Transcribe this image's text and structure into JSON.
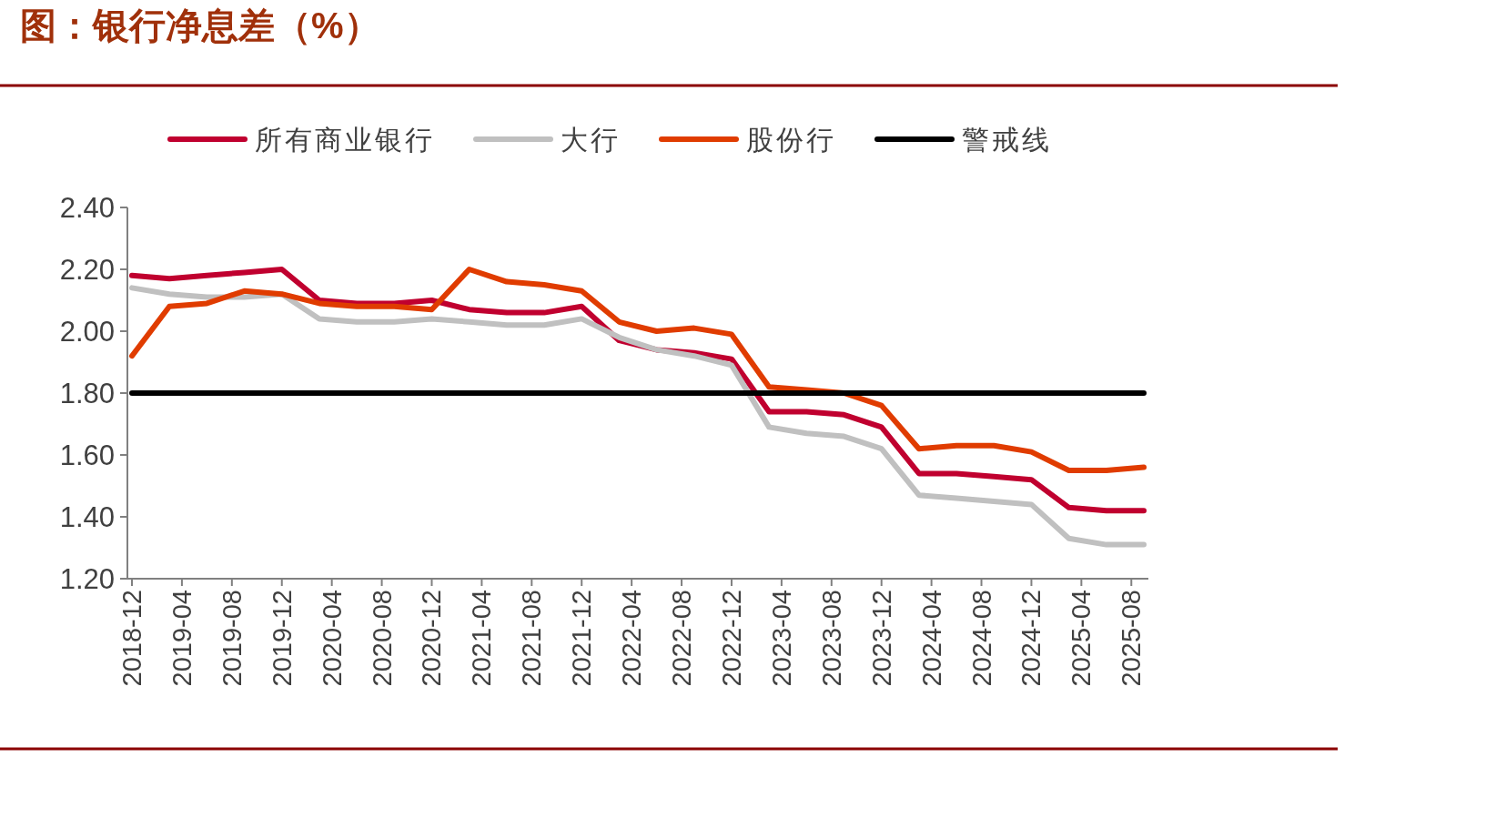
{
  "chart_data": {
    "type": "line",
    "title": "图：银行净息差（%）",
    "x": [
      "2018-12",
      "2019-03",
      "2019-06",
      "2019-09",
      "2019-12",
      "2020-03",
      "2020-06",
      "2020-09",
      "2020-12",
      "2021-03",
      "2021-06",
      "2021-09",
      "2021-12",
      "2022-03",
      "2022-06",
      "2022-09",
      "2022-12",
      "2023-03",
      "2023-06",
      "2023-09",
      "2023-12",
      "2024-03",
      "2024-06",
      "2024-09",
      "2024-12",
      "2025-03",
      "2025-06",
      "2025-09"
    ],
    "series": [
      {
        "name": "所有商业银行",
        "color": "#c0002f",
        "values": [
          2.18,
          2.17,
          2.18,
          2.19,
          2.2,
          2.1,
          2.09,
          2.09,
          2.1,
          2.07,
          2.06,
          2.06,
          2.08,
          1.97,
          1.94,
          1.93,
          1.91,
          1.74,
          1.74,
          1.73,
          1.69,
          1.54,
          1.54,
          1.53,
          1.52,
          1.43,
          1.42,
          1.42
        ]
      },
      {
        "name": "大行",
        "color": "#c0c0c0",
        "values": [
          2.14,
          2.12,
          2.11,
          2.11,
          2.12,
          2.04,
          2.03,
          2.03,
          2.04,
          2.03,
          2.02,
          2.02,
          2.04,
          1.98,
          1.94,
          1.92,
          1.89,
          1.69,
          1.67,
          1.66,
          1.62,
          1.47,
          1.46,
          1.45,
          1.44,
          1.33,
          1.31,
          1.31
        ]
      },
      {
        "name": "股份行",
        "color": "#e03c00",
        "values": [
          1.92,
          2.08,
          2.09,
          2.13,
          2.12,
          2.09,
          2.08,
          2.08,
          2.07,
          2.2,
          2.16,
          2.15,
          2.13,
          2.03,
          2.0,
          2.01,
          1.99,
          1.82,
          1.81,
          1.8,
          1.76,
          1.62,
          1.63,
          1.63,
          1.61,
          1.55,
          1.55,
          1.56
        ]
      },
      {
        "name": "警戒线",
        "color": "#000000",
        "values": [
          1.8,
          1.8,
          1.8,
          1.8,
          1.8,
          1.8,
          1.8,
          1.8,
          1.8,
          1.8,
          1.8,
          1.8,
          1.8,
          1.8,
          1.8,
          1.8,
          1.8,
          1.8,
          1.8,
          1.8,
          1.8,
          1.8,
          1.8,
          1.8,
          1.8,
          1.8,
          1.8,
          1.8
        ]
      }
    ],
    "xlim": [
      "2018-12",
      "2025-09"
    ],
    "xticks": [
      "2018-12",
      "2019-04",
      "2019-08",
      "2019-12",
      "2020-04",
      "2020-08",
      "2020-12",
      "2021-04",
      "2021-08",
      "2021-12",
      "2022-04",
      "2022-08",
      "2022-12",
      "2023-04",
      "2023-08",
      "2023-12",
      "2024-04",
      "2024-08",
      "2024-12",
      "2025-04",
      "2025-08"
    ],
    "ylim": [
      1.2,
      2.4
    ],
    "yticks": [
      {
        "value": 1.2,
        "label": "1.20"
      },
      {
        "value": 1.4,
        "label": "1.40"
      },
      {
        "value": 1.6,
        "label": "1.60"
      },
      {
        "value": 1.8,
        "label": "1.80"
      },
      {
        "value": 2.0,
        "label": "2.00"
      },
      {
        "value": 2.2,
        "label": "2.20"
      },
      {
        "value": 2.4,
        "label": "2.40"
      }
    ],
    "grid": false,
    "legend": "top",
    "marker": "none",
    "line_style": "solid"
  }
}
